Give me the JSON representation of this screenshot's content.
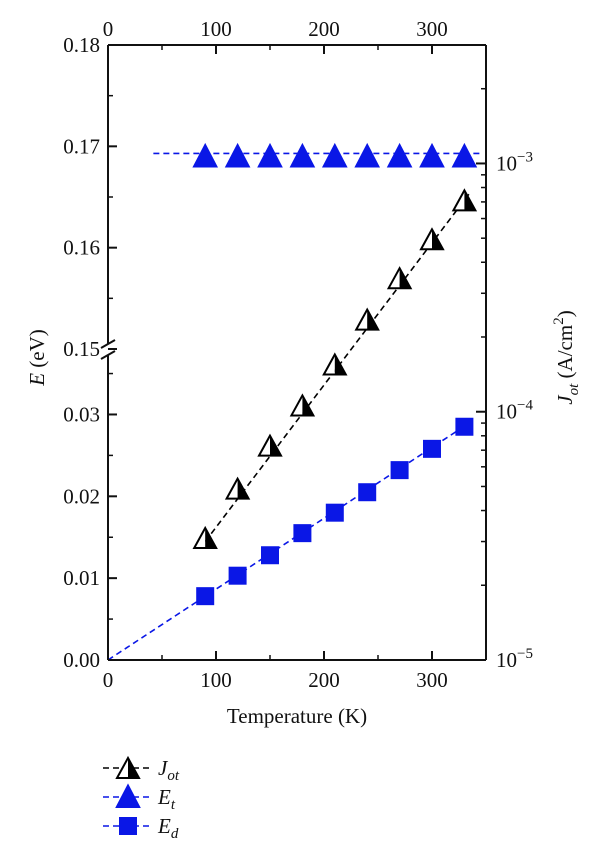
{
  "chart_data": {
    "type": "scatter",
    "x_axis": {
      "label": "Temperature (K)",
      "range": [
        0,
        350
      ],
      "ticks": [
        0,
        100,
        200,
        300
      ],
      "tick_labels": [
        "0",
        "100",
        "200",
        "300"
      ],
      "top_ticks": [
        0,
        100,
        200,
        300
      ],
      "top_tick_labels": [
        "0",
        "100",
        "200",
        "300"
      ]
    },
    "y_left_axis": {
      "label_main": "E",
      "label_unit": "(eV)",
      "broken": true,
      "lower_range": [
        0,
        0.038
      ],
      "upper_range": [
        0.15,
        0.18
      ],
      "lower_ticks": [
        "0.00",
        "0.01",
        "0.02",
        "0.03"
      ],
      "upper_ticks": [
        "0.15",
        "0.16",
        "0.17",
        "0.18"
      ]
    },
    "y_right_axis": {
      "label_main": "J",
      "label_sub": "ot",
      "label_unit": "(A/cm",
      "label_unit_sup": "2",
      "label_unit_close": ")",
      "scale": "log",
      "range": [
        1e-05,
        0.003
      ],
      "ticks": [
        1e-05,
        0.0001,
        0.001
      ],
      "tick_bases": [
        "10",
        "10",
        "10"
      ],
      "tick_exponents": [
        "−5",
        "−4",
        "−3"
      ]
    },
    "series": [
      {
        "name": "J",
        "name_sub": "ot",
        "axis": "right",
        "marker": "half-filled-triangle",
        "color": "#000000",
        "line": "dashed",
        "x": [
          90,
          120,
          150,
          180,
          210,
          240,
          270,
          300,
          330
        ],
        "y": [
          3.1e-05,
          4.9e-05,
          7.3e-05,
          0.000106,
          0.000155,
          0.000235,
          0.000345,
          0.000495,
          0.00071
        ],
        "fit_line": {
          "x": [
            90,
            335
          ],
          "y": [
            3e-05,
            0.00076
          ]
        }
      },
      {
        "name": "E",
        "name_sub": "t",
        "axis": "left",
        "marker": "filled-triangle",
        "color": "#0a17e6",
        "line": "dashed",
        "x": [
          90,
          120,
          150,
          180,
          210,
          240,
          270,
          300,
          330
        ],
        "y": [
          0.169,
          0.169,
          0.169,
          0.169,
          0.169,
          0.169,
          0.169,
          0.169,
          0.169
        ],
        "fit_line": {
          "x": [
            42,
            347
          ],
          "y": [
            0.1693,
            0.1693
          ]
        }
      },
      {
        "name": "E",
        "name_sub": "d",
        "axis": "left",
        "marker": "filled-square",
        "color": "#0a17e6",
        "line": "dashed",
        "x": [
          90,
          120,
          150,
          180,
          210,
          240,
          270,
          300,
          330
        ],
        "y": [
          0.0078,
          0.0103,
          0.0128,
          0.0155,
          0.018,
          0.0205,
          0.0232,
          0.0258,
          0.0285
        ],
        "fit_line": {
          "x": [
            0,
            335
          ],
          "y": [
            0.0,
            0.029
          ]
        }
      }
    ],
    "legend": {
      "placement": "bottom-left"
    }
  }
}
